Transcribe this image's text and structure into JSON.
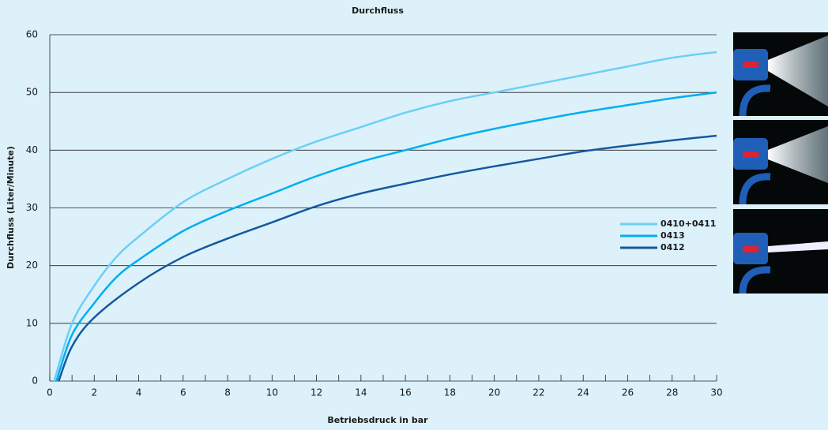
{
  "chart_data": {
    "type": "line",
    "title": "Durchfluss",
    "xlabel": "Betriebsdruck in bar",
    "ylabel": "Durchfluss (Liter/Minute)",
    "xlim": [
      0,
      30
    ],
    "ylim": [
      0,
      60
    ],
    "xticks": [
      0,
      2,
      4,
      6,
      8,
      10,
      12,
      14,
      16,
      18,
      20,
      22,
      24,
      26,
      28,
      30
    ],
    "x_minor_ticks": [
      1,
      3,
      5,
      7,
      9,
      11,
      13,
      15,
      17,
      19,
      21,
      23,
      25,
      27,
      29
    ],
    "yticks": [
      0,
      10,
      20,
      30,
      40,
      50,
      60
    ],
    "grid": true,
    "legend": "right",
    "series": [
      {
        "name": "0410+0411",
        "color": "#6dcff6",
        "x": [
          0.2,
          1,
          2,
          3,
          4,
          6,
          8,
          10,
          12,
          14,
          16,
          18,
          20,
          22,
          24,
          26,
          28,
          30
        ],
        "values": [
          0,
          10,
          16.5,
          21.5,
          25,
          31,
          35,
          38.5,
          41.5,
          44,
          46.5,
          48.5,
          50,
          51.5,
          53,
          54.5,
          56,
          57
        ]
      },
      {
        "name": "0413",
        "color": "#00aeef",
        "x": [
          0.3,
          1,
          2,
          3,
          4,
          6,
          8,
          10,
          12,
          14,
          16,
          18,
          20,
          22,
          24,
          26,
          28,
          30
        ],
        "values": [
          0,
          8,
          13.5,
          18,
          21,
          26,
          29.5,
          32.5,
          35.5,
          38,
          40,
          42,
          43.7,
          45.2,
          46.6,
          47.8,
          49,
          50
        ]
      },
      {
        "name": "0412",
        "color": "#15589e",
        "x": [
          0.4,
          1,
          2,
          4,
          6,
          8,
          10,
          12,
          14,
          16,
          18,
          20,
          22,
          24,
          26,
          28,
          30
        ],
        "values": [
          0,
          6,
          11,
          17,
          21.5,
          24.7,
          27.5,
          30.3,
          32.5,
          34.2,
          35.8,
          37.2,
          38.5,
          39.8,
          40.8,
          41.7,
          42.5
        ]
      }
    ]
  }
}
